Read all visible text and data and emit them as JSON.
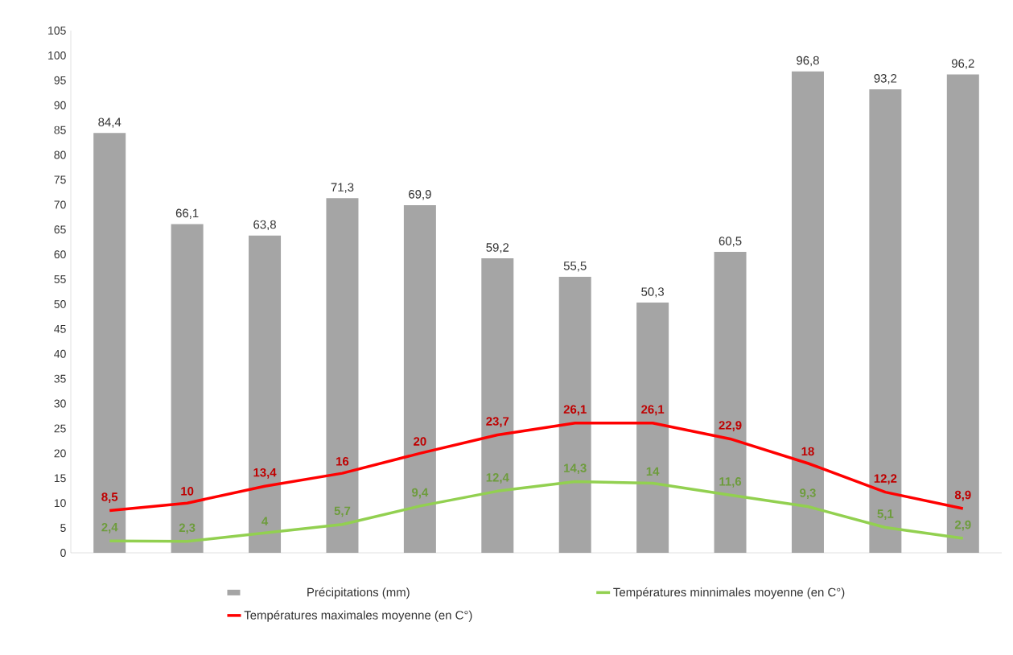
{
  "chart_data": {
    "type": "bar",
    "categories": [
      null,
      null,
      null,
      null,
      null,
      null,
      null,
      null,
      null,
      null,
      null,
      null
    ],
    "series": [
      {
        "name": "Précipitations (mm)",
        "color": "#a5a5a5",
        "values": [
          84.4,
          66.1,
          63.8,
          71.3,
          69.9,
          59.2,
          55.5,
          50.3,
          60.5,
          96.8,
          93.2,
          96.2
        ],
        "value_labels": [
          "84,4",
          "66,1",
          "63,8",
          "71,3",
          "69,9",
          "59,2",
          "55,5",
          "50,3",
          "60,5",
          "96,8",
          "93,2",
          "96,2"
        ]
      },
      {
        "name": "Températures  minnimales moyenne (en C°)",
        "type": "line",
        "color": "#92d050",
        "values": [
          2.4,
          2.3,
          4,
          5.7,
          9.4,
          12.4,
          14.3,
          14,
          11.6,
          9.3,
          5.1,
          2.9
        ],
        "value_labels": [
          "2,4",
          "2,3",
          "4",
          "5,7",
          "9,4",
          "12,4",
          "14,3",
          "14",
          "11,6",
          "9,3",
          "5,1",
          "2,9"
        ]
      },
      {
        "name": "Températures maximales moyenne (en C°)",
        "type": "line",
        "color": "#ff0000",
        "values": [
          8.5,
          10,
          13.4,
          16,
          20,
          23.7,
          26.1,
          26.1,
          22.9,
          18,
          12.2,
          8.9
        ],
        "value_labels": [
          "8,5",
          "10",
          "13,4",
          "16",
          "20",
          "23,7",
          "26,1",
          "26,1",
          "22,9",
          "18",
          "12,2",
          "8,9"
        ]
      }
    ],
    "ylim": [
      0,
      105
    ],
    "yticks": [
      0,
      5,
      10,
      15,
      20,
      25,
      30,
      35,
      40,
      45,
      50,
      55,
      60,
      65,
      70,
      75,
      80,
      85,
      90,
      95,
      100,
      105
    ],
    "legend": "bottom"
  }
}
